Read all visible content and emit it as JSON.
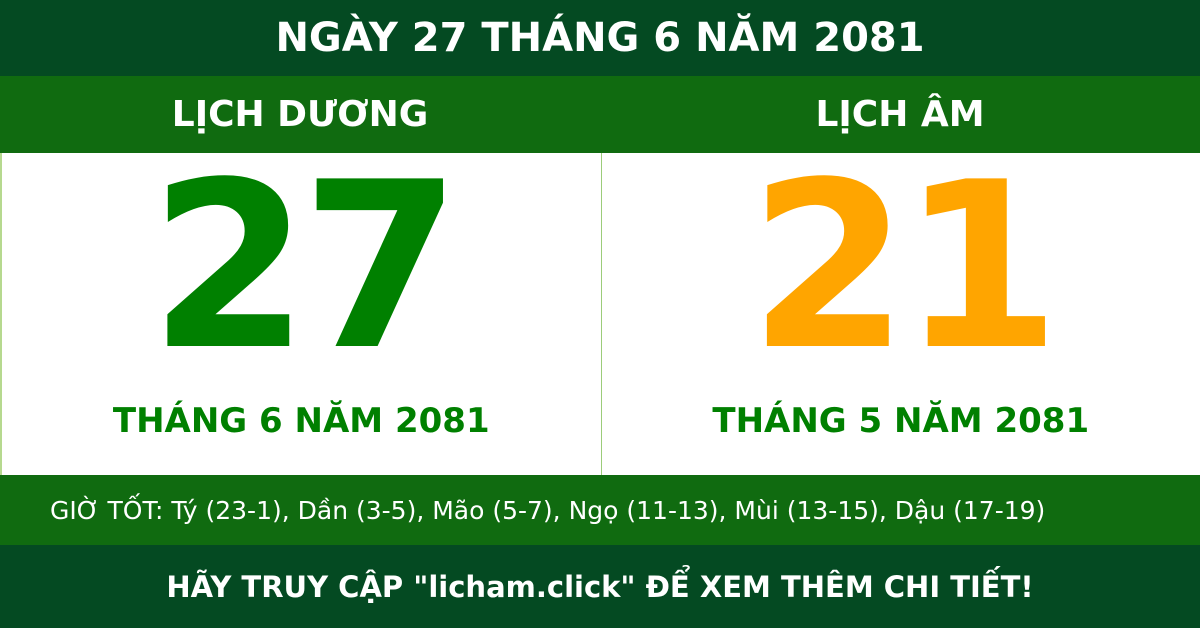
{
  "title": "NGÀY 27 THÁNG 6 NĂM 2081",
  "solar": {
    "label": "LỊCH DƯƠNG",
    "day": "27",
    "month_year": "THÁNG 6 NĂM 2081"
  },
  "lunar": {
    "label": "LỊCH ÂM",
    "day": "21",
    "month_year": "THÁNG 5 NĂM 2081"
  },
  "good_hours": "GIỜ TỐT: Tý (23-1), Dần (3-5), Mão (5-7), Ngọ (11-13), Mùi (13-15), Dậu (17-19)",
  "footer": "HÃY TRUY CẬP \"licham.click\" ĐỂ XEM THÊM CHI TIẾT!",
  "colors": {
    "dark_green": "#044a22",
    "green": "#106b10",
    "solar_number": "#008000",
    "lunar_number": "#ffa500"
  }
}
